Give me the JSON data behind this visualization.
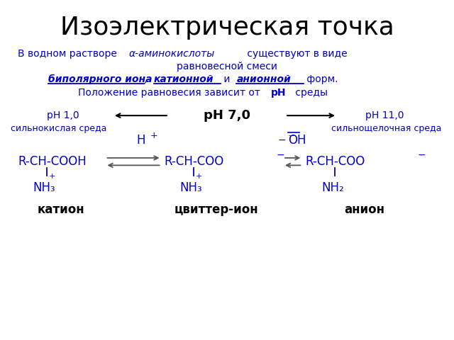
{
  "title": "Изоэлектрическая точка",
  "bg_color": "#ffffff",
  "blue": "#0000cc",
  "black": "#000000",
  "line1_plain": "В водном растворе ",
  "line1_italic": "α-аминокислоты",
  "line1_end": " существуют в виде",
  "line2": "равновесной смеси",
  "line3_a": "биполярного иона",
  "line3_b": ", ",
  "line3_c": "катионной",
  "line3_d": " и ",
  "line3_e": "анионной",
  "line3_f": " форм.",
  "line4_a": "Положение равновесия зависит от ",
  "line4_ph": "pH",
  "line4_b": " среды",
  "ph10": "pH 1,0",
  "ph70": "pH 7,0",
  "ph110": "pH 11,0",
  "acid": "сильнокислая среда",
  "base": "сильнощелочная среда",
  "label_cat": "катион",
  "label_zwit": "цвиттер-ион",
  "label_an": "анион"
}
